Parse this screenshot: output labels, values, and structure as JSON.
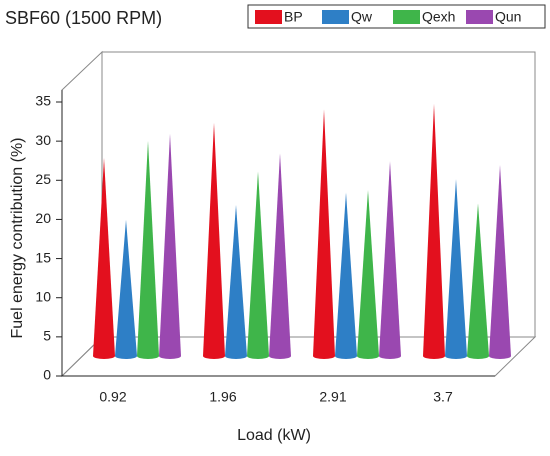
{
  "chart_data": {
    "type": "cone3d",
    "title": "SBF60 (1500 RPM)",
    "x_label": "Load (kW)",
    "y_label": "Fuel energy contribution (%)",
    "categories": [
      "0.92",
      "1.96",
      "2.91",
      "3.7"
    ],
    "series": [
      {
        "name": "BP",
        "color": "#e3101e",
        "values": [
          25.3,
          29.8,
          31.5,
          32.2
        ]
      },
      {
        "name": "Qw",
        "color": "#2e7fc6",
        "values": [
          17.4,
          19.3,
          20.9,
          22.6
        ]
      },
      {
        "name": "Qexh",
        "color": "#3fb54a",
        "values": [
          27.5,
          23.6,
          21.2,
          19.5
        ]
      },
      {
        "name": "Qun",
        "color": "#9a48b0",
        "values": [
          28.4,
          25.9,
          24.9,
          24.4
        ]
      }
    ],
    "ylim": [
      0,
      35
    ],
    "yticks": [
      0,
      5,
      10,
      15,
      20,
      25,
      30,
      35
    ]
  }
}
